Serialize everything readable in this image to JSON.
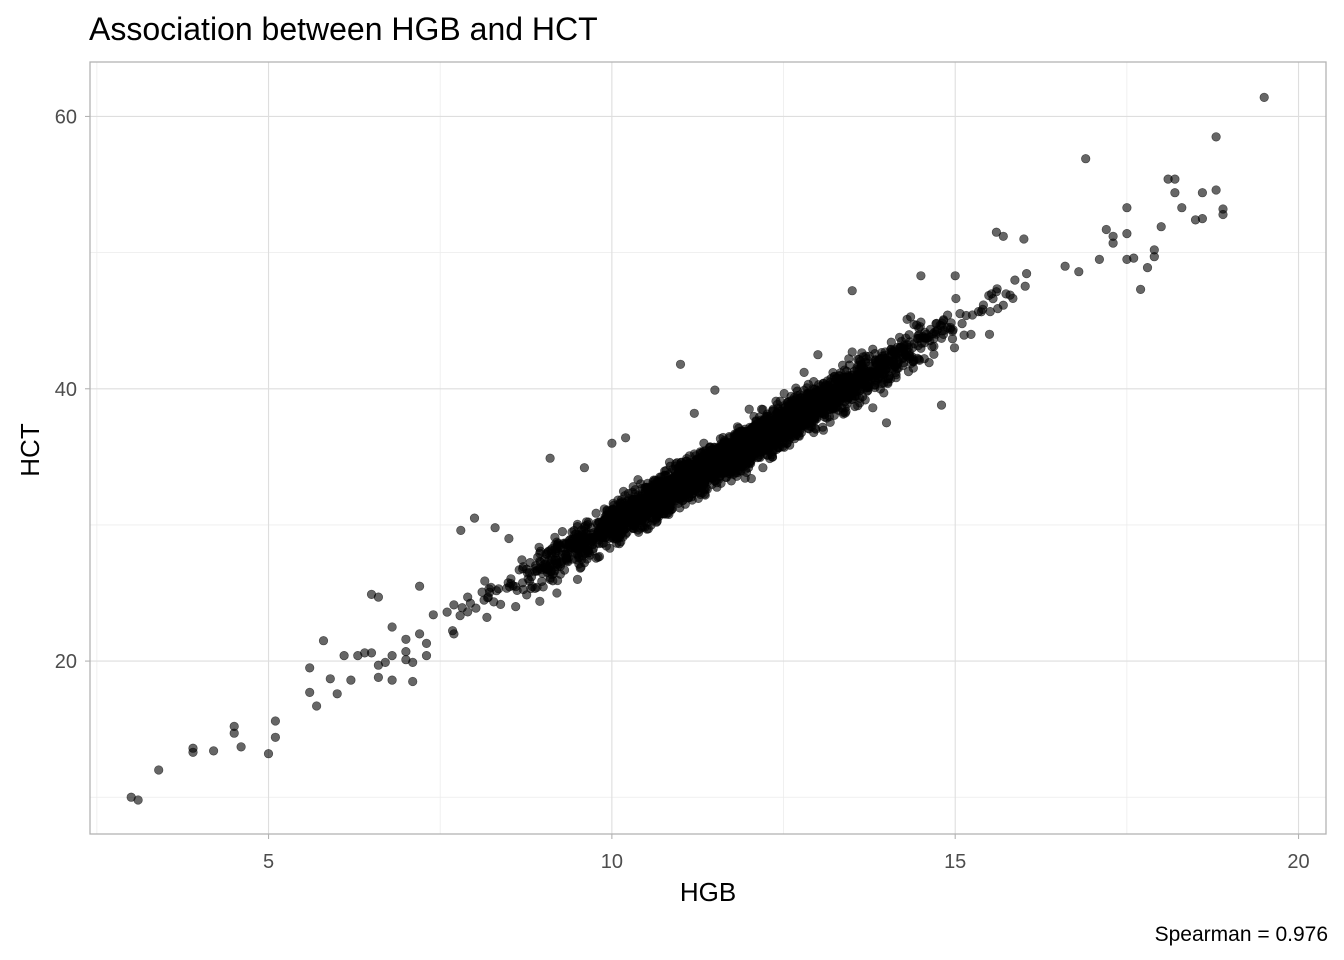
{
  "chart_data": {
    "type": "scatter",
    "title": "Association between HGB and HCT",
    "xlabel": "HGB",
    "ylabel": "HCT",
    "caption": "Spearman = 0.976",
    "xlim": [
      2.4,
      20.4
    ],
    "ylim": [
      7.3,
      64.0
    ],
    "x_ticks": [
      5,
      10,
      15,
      20
    ],
    "y_ticks": [
      20,
      40,
      60
    ],
    "x_tick_labels": [
      "5",
      "10",
      "15",
      "20"
    ],
    "y_tick_labels": [
      "20",
      "40",
      "60"
    ],
    "grid": true,
    "point_color": "#000000",
    "point_alpha": 0.6,
    "trend": {
      "slope": 2.95,
      "intercept": 0.5,
      "note": "bulk of points follows HCT ≈ 2.95·HGB + 0.5 between HGB 7.5 and 17"
    },
    "points": [
      [
        3.0,
        10.0
      ],
      [
        3.1,
        9.8
      ],
      [
        3.4,
        12.0
      ],
      [
        3.9,
        13.6
      ],
      [
        3.9,
        13.3
      ],
      [
        4.2,
        13.4
      ],
      [
        4.5,
        14.7
      ],
      [
        4.5,
        15.2
      ],
      [
        4.6,
        13.7
      ],
      [
        5.0,
        13.2
      ],
      [
        5.1,
        14.4
      ],
      [
        5.1,
        15.6
      ],
      [
        5.6,
        19.5
      ],
      [
        5.6,
        17.7
      ],
      [
        5.7,
        16.7
      ],
      [
        5.8,
        21.5
      ],
      [
        5.9,
        18.7
      ],
      [
        6.0,
        17.6
      ],
      [
        6.1,
        20.4
      ],
      [
        6.2,
        18.6
      ],
      [
        6.3,
        20.4
      ],
      [
        6.4,
        20.6
      ],
      [
        6.5,
        20.6
      ],
      [
        6.5,
        24.9
      ],
      [
        6.6,
        24.7
      ],
      [
        6.6,
        18.8
      ],
      [
        6.6,
        19.7
      ],
      [
        6.7,
        19.9
      ],
      [
        6.8,
        22.5
      ],
      [
        6.8,
        20.4
      ],
      [
        6.8,
        18.6
      ],
      [
        7.0,
        20.7
      ],
      [
        7.0,
        21.6
      ],
      [
        7.0,
        20.1
      ],
      [
        7.1,
        19.9
      ],
      [
        7.1,
        18.5
      ],
      [
        7.2,
        22.0
      ],
      [
        7.2,
        25.5
      ],
      [
        7.3,
        20.4
      ],
      [
        7.3,
        21.3
      ],
      [
        7.4,
        23.4
      ],
      [
        7.6,
        23.6
      ],
      [
        7.7,
        22.0
      ],
      [
        7.8,
        29.6
      ],
      [
        7.9,
        24.7
      ],
      [
        8.0,
        30.5
      ],
      [
        8.3,
        29.8
      ],
      [
        8.5,
        29.0
      ],
      [
        9.1,
        34.9
      ],
      [
        9.6,
        34.2
      ],
      [
        10.0,
        36.0
      ],
      [
        10.2,
        36.4
      ],
      [
        11.0,
        41.8
      ],
      [
        11.5,
        39.9
      ],
      [
        12.0,
        38.5
      ],
      [
        12.8,
        41.2
      ],
      [
        13.0,
        42.5
      ],
      [
        13.5,
        47.2
      ],
      [
        14.5,
        48.3
      ],
      [
        15.0,
        48.3
      ],
      [
        15.6,
        51.5
      ],
      [
        15.7,
        51.2
      ],
      [
        16.0,
        51.0
      ],
      [
        16.6,
        49.0
      ],
      [
        16.8,
        48.6
      ],
      [
        16.9,
        56.9
      ],
      [
        17.2,
        51.7
      ],
      [
        17.3,
        50.7
      ],
      [
        17.5,
        49.5
      ],
      [
        17.6,
        49.6
      ],
      [
        17.8,
        48.9
      ],
      [
        17.9,
        50.2
      ],
      [
        17.7,
        47.3
      ],
      [
        17.9,
        49.7
      ],
      [
        17.5,
        53.3
      ],
      [
        17.3,
        51.2
      ],
      [
        17.5,
        51.4
      ],
      [
        17.1,
        49.5
      ],
      [
        18.0,
        51.9
      ],
      [
        18.1,
        55.4
      ],
      [
        18.2,
        55.4
      ],
      [
        18.2,
        54.4
      ],
      [
        18.3,
        53.3
      ],
      [
        18.5,
        52.4
      ],
      [
        18.6,
        52.5
      ],
      [
        18.6,
        54.4
      ],
      [
        18.8,
        54.6
      ],
      [
        18.9,
        53.2
      ],
      [
        18.9,
        52.8
      ],
      [
        18.8,
        58.5
      ],
      [
        19.5,
        61.4
      ],
      [
        12.4,
        35.9
      ],
      [
        14.0,
        37.5
      ],
      [
        14.8,
        38.8
      ],
      [
        13.5,
        42.7
      ],
      [
        14.3,
        45.1
      ],
      [
        11.2,
        38.2
      ],
      [
        9.2,
        25.0
      ],
      [
        9.5,
        26.0
      ],
      [
        8.6,
        24.0
      ],
      [
        12.2,
        34.2
      ],
      [
        13.8,
        38.6
      ],
      [
        15.5,
        44.0
      ]
    ]
  }
}
